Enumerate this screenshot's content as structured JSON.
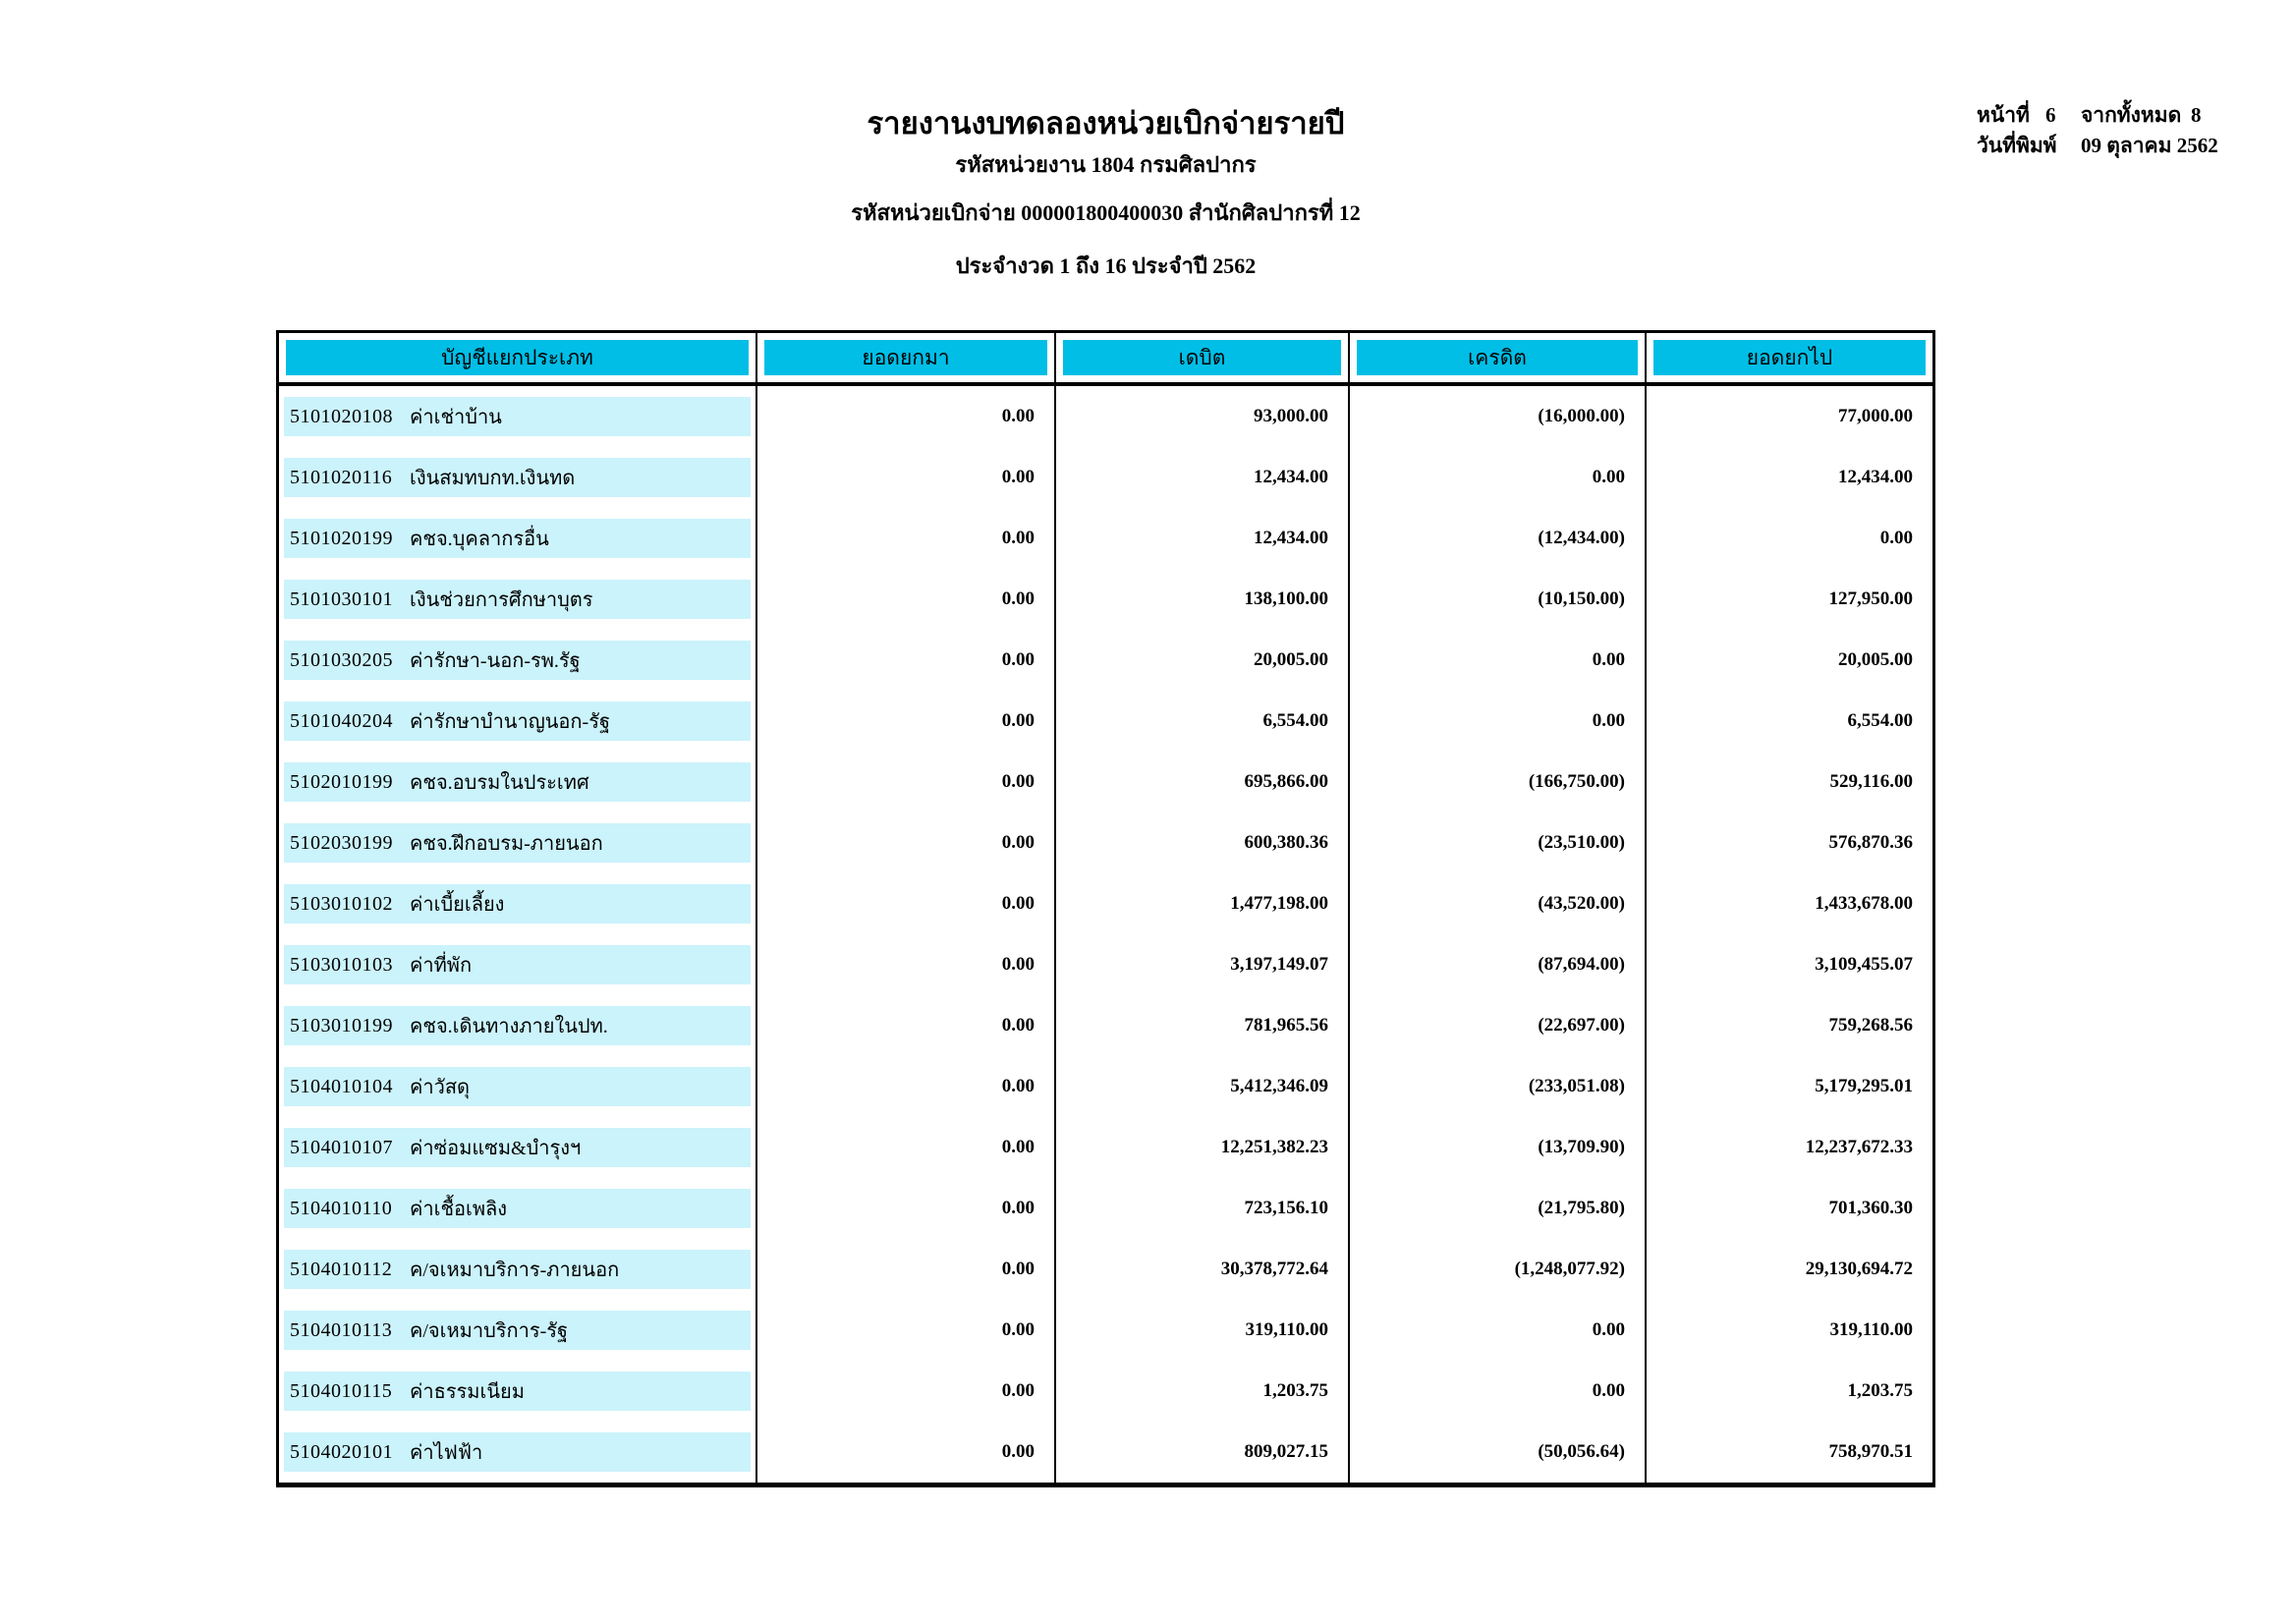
{
  "report": {
    "title": "รายงานงบทดลองหน่วยเบิกจ่ายรายปี",
    "subtitle_agency": "รหัสหน่วยงาน 1804 กรมศิลปากร",
    "subtitle_unit": "รหัสหน่วยเบิกจ่าย 000001800400030 สำนักศิลปากรที่ 12",
    "subtitle_period": "ประจำงวด 1 ถึง 16 ประจำปี 2562",
    "page_label": "หน้าที่",
    "page_number": "6",
    "total_label": "จากทั้งหมด",
    "total_pages": "8",
    "print_date_label": "วันที่พิมพ์",
    "print_date": "09 ตุลาคม 2562"
  },
  "colors": {
    "header_bg": "#00bee6",
    "row_band": "#cbf3fb"
  },
  "table": {
    "headers": [
      "บัญชีแยกประเภท",
      "ยอดยกมา",
      "เดบิต",
      "เครดิต",
      "ยอดยกไป"
    ],
    "rows": [
      {
        "code": "5101020108",
        "name": "ค่าเช่าบ้าน",
        "brought": "0.00",
        "debit": "93,000.00",
        "credit": "(16,000.00)",
        "carried": "77,000.00"
      },
      {
        "code": "5101020116",
        "name": "เงินสมทบกท.เงินทด",
        "brought": "0.00",
        "debit": "12,434.00",
        "credit": "0.00",
        "carried": "12,434.00"
      },
      {
        "code": "5101020199",
        "name": "คชจ.บุคลากรอื่น",
        "brought": "0.00",
        "debit": "12,434.00",
        "credit": "(12,434.00)",
        "carried": "0.00"
      },
      {
        "code": "5101030101",
        "name": "เงินช่วยการศึกษาบุตร",
        "brought": "0.00",
        "debit": "138,100.00",
        "credit": "(10,150.00)",
        "carried": "127,950.00"
      },
      {
        "code": "5101030205",
        "name": "ค่ารักษา-นอก-รพ.รัฐ",
        "brought": "0.00",
        "debit": "20,005.00",
        "credit": "0.00",
        "carried": "20,005.00"
      },
      {
        "code": "5101040204",
        "name": "ค่ารักษาบำนาญนอก-รัฐ",
        "brought": "0.00",
        "debit": "6,554.00",
        "credit": "0.00",
        "carried": "6,554.00"
      },
      {
        "code": "5102010199",
        "name": "คชจ.อบรมในประเทศ",
        "brought": "0.00",
        "debit": "695,866.00",
        "credit": "(166,750.00)",
        "carried": "529,116.00"
      },
      {
        "code": "5102030199",
        "name": "คชจ.ฝึกอบรม-ภายนอก",
        "brought": "0.00",
        "debit": "600,380.36",
        "credit": "(23,510.00)",
        "carried": "576,870.36"
      },
      {
        "code": "5103010102",
        "name": "ค่าเบี้ยเลี้ยง",
        "brought": "0.00",
        "debit": "1,477,198.00",
        "credit": "(43,520.00)",
        "carried": "1,433,678.00"
      },
      {
        "code": "5103010103",
        "name": "ค่าที่พัก",
        "brought": "0.00",
        "debit": "3,197,149.07",
        "credit": "(87,694.00)",
        "carried": "3,109,455.07"
      },
      {
        "code": "5103010199",
        "name": "คชจ.เดินทางภายในปท.",
        "brought": "0.00",
        "debit": "781,965.56",
        "credit": "(22,697.00)",
        "carried": "759,268.56"
      },
      {
        "code": "5104010104",
        "name": "ค่าวัสดุ",
        "brought": "0.00",
        "debit": "5,412,346.09",
        "credit": "(233,051.08)",
        "carried": "5,179,295.01"
      },
      {
        "code": "5104010107",
        "name": "ค่าซ่อมแซม&บำรุงฯ",
        "brought": "0.00",
        "debit": "12,251,382.23",
        "credit": "(13,709.90)",
        "carried": "12,237,672.33"
      },
      {
        "code": "5104010110",
        "name": "ค่าเชื้อเพลิง",
        "brought": "0.00",
        "debit": "723,156.10",
        "credit": "(21,795.80)",
        "carried": "701,360.30"
      },
      {
        "code": "5104010112",
        "name": "ค/จเหมาบริการ-ภายนอก",
        "brought": "0.00",
        "debit": "30,378,772.64",
        "credit": "(1,248,077.92)",
        "carried": "29,130,694.72"
      },
      {
        "code": "5104010113",
        "name": "ค/จเหมาบริการ-รัฐ",
        "brought": "0.00",
        "debit": "319,110.00",
        "credit": "0.00",
        "carried": "319,110.00"
      },
      {
        "code": "5104010115",
        "name": "ค่าธรรมเนียม",
        "brought": "0.00",
        "debit": "1,203.75",
        "credit": "0.00",
        "carried": "1,203.75"
      },
      {
        "code": "5104020101",
        "name": "ค่าไฟฟ้า",
        "brought": "0.00",
        "debit": "809,027.15",
        "credit": "(50,056.64)",
        "carried": "758,970.51"
      }
    ]
  }
}
